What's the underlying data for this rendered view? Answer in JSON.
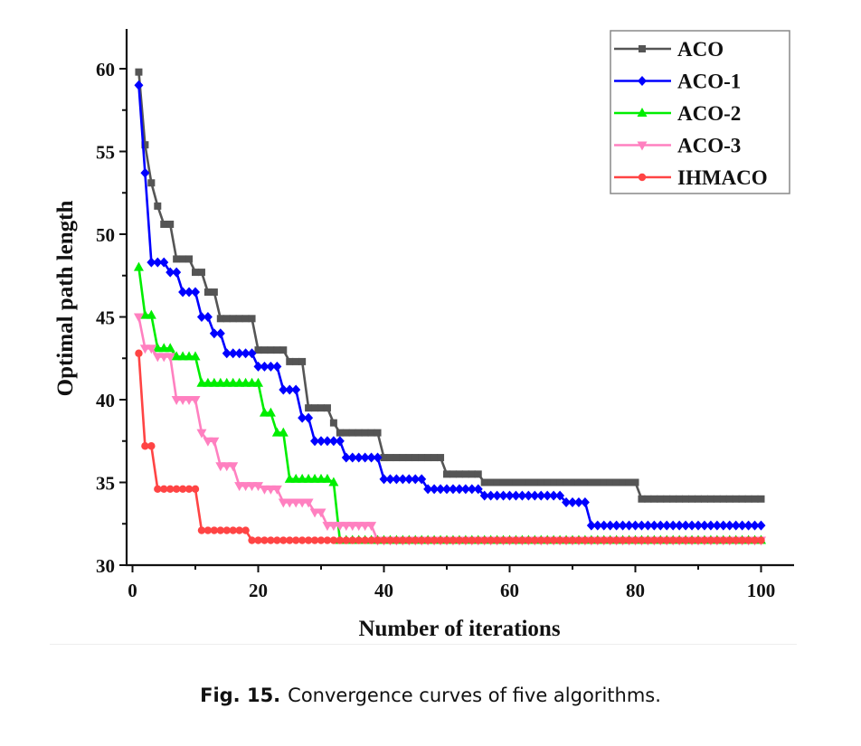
{
  "chart_data": {
    "type": "line",
    "title": "",
    "xlabel": "Number of iterations",
    "ylabel": "Optimal path length",
    "xlim": [
      -1,
      105
    ],
    "ylim": [
      30,
      62.4
    ],
    "xticks": [
      0,
      20,
      40,
      60,
      80,
      100
    ],
    "yticks": [
      30,
      35,
      40,
      45,
      50,
      55,
      60
    ],
    "grid": false,
    "legend_position": "top-right",
    "x_start": 1,
    "series": [
      {
        "name": "ACO",
        "color": "#555555",
        "marker": "square",
        "values": [
          59.8,
          55.4,
          53.1,
          51.7,
          50.6,
          50.6,
          48.5,
          48.5,
          48.5,
          47.7,
          47.7,
          46.5,
          46.5,
          44.9,
          44.9,
          44.9,
          44.9,
          44.9,
          44.9,
          43.0,
          43.0,
          43.0,
          43.0,
          43.0,
          42.3,
          42.3,
          42.3,
          39.5,
          39.5,
          39.5,
          39.5,
          38.6,
          38.0,
          38.0,
          38.0,
          38.0,
          38.0,
          38.0,
          38.0,
          36.5,
          36.5,
          36.5,
          36.5,
          36.5,
          36.5,
          36.5,
          36.5,
          36.5,
          36.5,
          35.5,
          35.5,
          35.5,
          35.5,
          35.5,
          35.5,
          35.0,
          35.0,
          35.0,
          35.0,
          35.0,
          35.0,
          35.0,
          35.0,
          35.0,
          35.0,
          35.0,
          35.0,
          35.0,
          35.0,
          35.0,
          35.0,
          35.0,
          35.0,
          35.0,
          35.0,
          35.0,
          35.0,
          35.0,
          35.0,
          35.0,
          34.0,
          34.0,
          34.0,
          34.0,
          34.0,
          34.0,
          34.0,
          34.0,
          34.0,
          34.0,
          34.0,
          34.0,
          34.0,
          34.0,
          34.0,
          34.0,
          34.0,
          34.0,
          34.0,
          34.0
        ]
      },
      {
        "name": "ACO-1",
        "color": "#0000ff",
        "marker": "diamond",
        "values": [
          59.0,
          53.7,
          48.3,
          48.3,
          48.3,
          47.7,
          47.7,
          46.5,
          46.5,
          46.5,
          45.0,
          45.0,
          44.0,
          44.0,
          42.8,
          42.8,
          42.8,
          42.8,
          42.8,
          42.0,
          42.0,
          42.0,
          42.0,
          40.6,
          40.6,
          40.6,
          38.9,
          38.9,
          37.5,
          37.5,
          37.5,
          37.5,
          37.5,
          36.5,
          36.5,
          36.5,
          36.5,
          36.5,
          36.5,
          35.2,
          35.2,
          35.2,
          35.2,
          35.2,
          35.2,
          35.2,
          34.6,
          34.6,
          34.6,
          34.6,
          34.6,
          34.6,
          34.6,
          34.6,
          34.6,
          34.2,
          34.2,
          34.2,
          34.2,
          34.2,
          34.2,
          34.2,
          34.2,
          34.2,
          34.2,
          34.2,
          34.2,
          34.2,
          33.8,
          33.8,
          33.8,
          33.8,
          32.4,
          32.4,
          32.4,
          32.4,
          32.4,
          32.4,
          32.4,
          32.4,
          32.4,
          32.4,
          32.4,
          32.4,
          32.4,
          32.4,
          32.4,
          32.4,
          32.4,
          32.4,
          32.4,
          32.4,
          32.4,
          32.4,
          32.4,
          32.4,
          32.4,
          32.4,
          32.4,
          32.4
        ]
      },
      {
        "name": "ACO-2",
        "color": "#00ee00",
        "marker": "triangle-up",
        "values": [
          48.0,
          45.1,
          45.1,
          43.1,
          43.1,
          43.1,
          42.6,
          42.6,
          42.6,
          42.6,
          41.0,
          41.0,
          41.0,
          41.0,
          41.0,
          41.0,
          41.0,
          41.0,
          41.0,
          41.0,
          39.2,
          39.2,
          38.0,
          38.0,
          35.2,
          35.2,
          35.2,
          35.2,
          35.2,
          35.2,
          35.2,
          35.0,
          31.5,
          31.5,
          31.5,
          31.5,
          31.5,
          31.5,
          31.5,
          31.5,
          31.5,
          31.5,
          31.5,
          31.5,
          31.5,
          31.5,
          31.5,
          31.5,
          31.5,
          31.5,
          31.5,
          31.5,
          31.5,
          31.5,
          31.5,
          31.5,
          31.5,
          31.5,
          31.5,
          31.5,
          31.5,
          31.5,
          31.5,
          31.5,
          31.5,
          31.5,
          31.5,
          31.5,
          31.5,
          31.5,
          31.5,
          31.5,
          31.5,
          31.5,
          31.5,
          31.5,
          31.5,
          31.5,
          31.5,
          31.5,
          31.5,
          31.5,
          31.5,
          31.5,
          31.5,
          31.5,
          31.5,
          31.5,
          31.5,
          31.5,
          31.5,
          31.5,
          31.5,
          31.5,
          31.5,
          31.5,
          31.5,
          31.5,
          31.5,
          31.5
        ]
      },
      {
        "name": "ACO-3",
        "color": "#ff80c0",
        "marker": "triangle-down",
        "values": [
          45.0,
          43.1,
          43.1,
          42.6,
          42.6,
          42.6,
          40.0,
          40.0,
          40.0,
          40.0,
          38.0,
          37.5,
          37.5,
          36.0,
          36.0,
          36.0,
          34.8,
          34.8,
          34.8,
          34.8,
          34.6,
          34.6,
          34.6,
          33.8,
          33.8,
          33.8,
          33.8,
          33.8,
          33.2,
          33.2,
          32.4,
          32.4,
          32.4,
          32.4,
          32.4,
          32.4,
          32.4,
          32.4,
          31.5,
          31.5,
          31.5,
          31.5,
          31.5,
          31.5,
          31.5,
          31.5,
          31.5,
          31.5,
          31.5,
          31.5,
          31.5,
          31.5,
          31.5,
          31.5,
          31.5,
          31.5,
          31.5,
          31.5,
          31.5,
          31.5,
          31.5,
          31.5,
          31.5,
          31.5,
          31.5,
          31.5,
          31.5,
          31.5,
          31.5,
          31.5,
          31.5,
          31.5,
          31.5,
          31.5,
          31.5,
          31.5,
          31.5,
          31.5,
          31.5,
          31.5,
          31.5,
          31.5,
          31.5,
          31.5,
          31.5,
          31.5,
          31.5,
          31.5,
          31.5,
          31.5,
          31.5,
          31.5,
          31.5,
          31.5,
          31.5,
          31.5,
          31.5,
          31.5,
          31.5,
          31.5
        ]
      },
      {
        "name": "IHMACO",
        "color": "#ff4444",
        "marker": "circle",
        "values": [
          42.8,
          37.2,
          37.2,
          34.6,
          34.6,
          34.6,
          34.6,
          34.6,
          34.6,
          34.6,
          32.1,
          32.1,
          32.1,
          32.1,
          32.1,
          32.1,
          32.1,
          32.1,
          31.5,
          31.5,
          31.5,
          31.5,
          31.5,
          31.5,
          31.5,
          31.5,
          31.5,
          31.5,
          31.5,
          31.5,
          31.5,
          31.5,
          31.5,
          31.5,
          31.5,
          31.5,
          31.5,
          31.5,
          31.5,
          31.5,
          31.5,
          31.5,
          31.5,
          31.5,
          31.5,
          31.5,
          31.5,
          31.5,
          31.5,
          31.5,
          31.5,
          31.5,
          31.5,
          31.5,
          31.5,
          31.5,
          31.5,
          31.5,
          31.5,
          31.5,
          31.5,
          31.5,
          31.5,
          31.5,
          31.5,
          31.5,
          31.5,
          31.5,
          31.5,
          31.5,
          31.5,
          31.5,
          31.5,
          31.5,
          31.5,
          31.5,
          31.5,
          31.5,
          31.5,
          31.5,
          31.5,
          31.5,
          31.5,
          31.5,
          31.5,
          31.5,
          31.5,
          31.5,
          31.5,
          31.5,
          31.5,
          31.5,
          31.5,
          31.5,
          31.5,
          31.5,
          31.5,
          31.5,
          31.5,
          31.5
        ]
      }
    ]
  },
  "caption": {
    "label": "Fig. 15.",
    "text": "Convergence curves of five algorithms."
  }
}
